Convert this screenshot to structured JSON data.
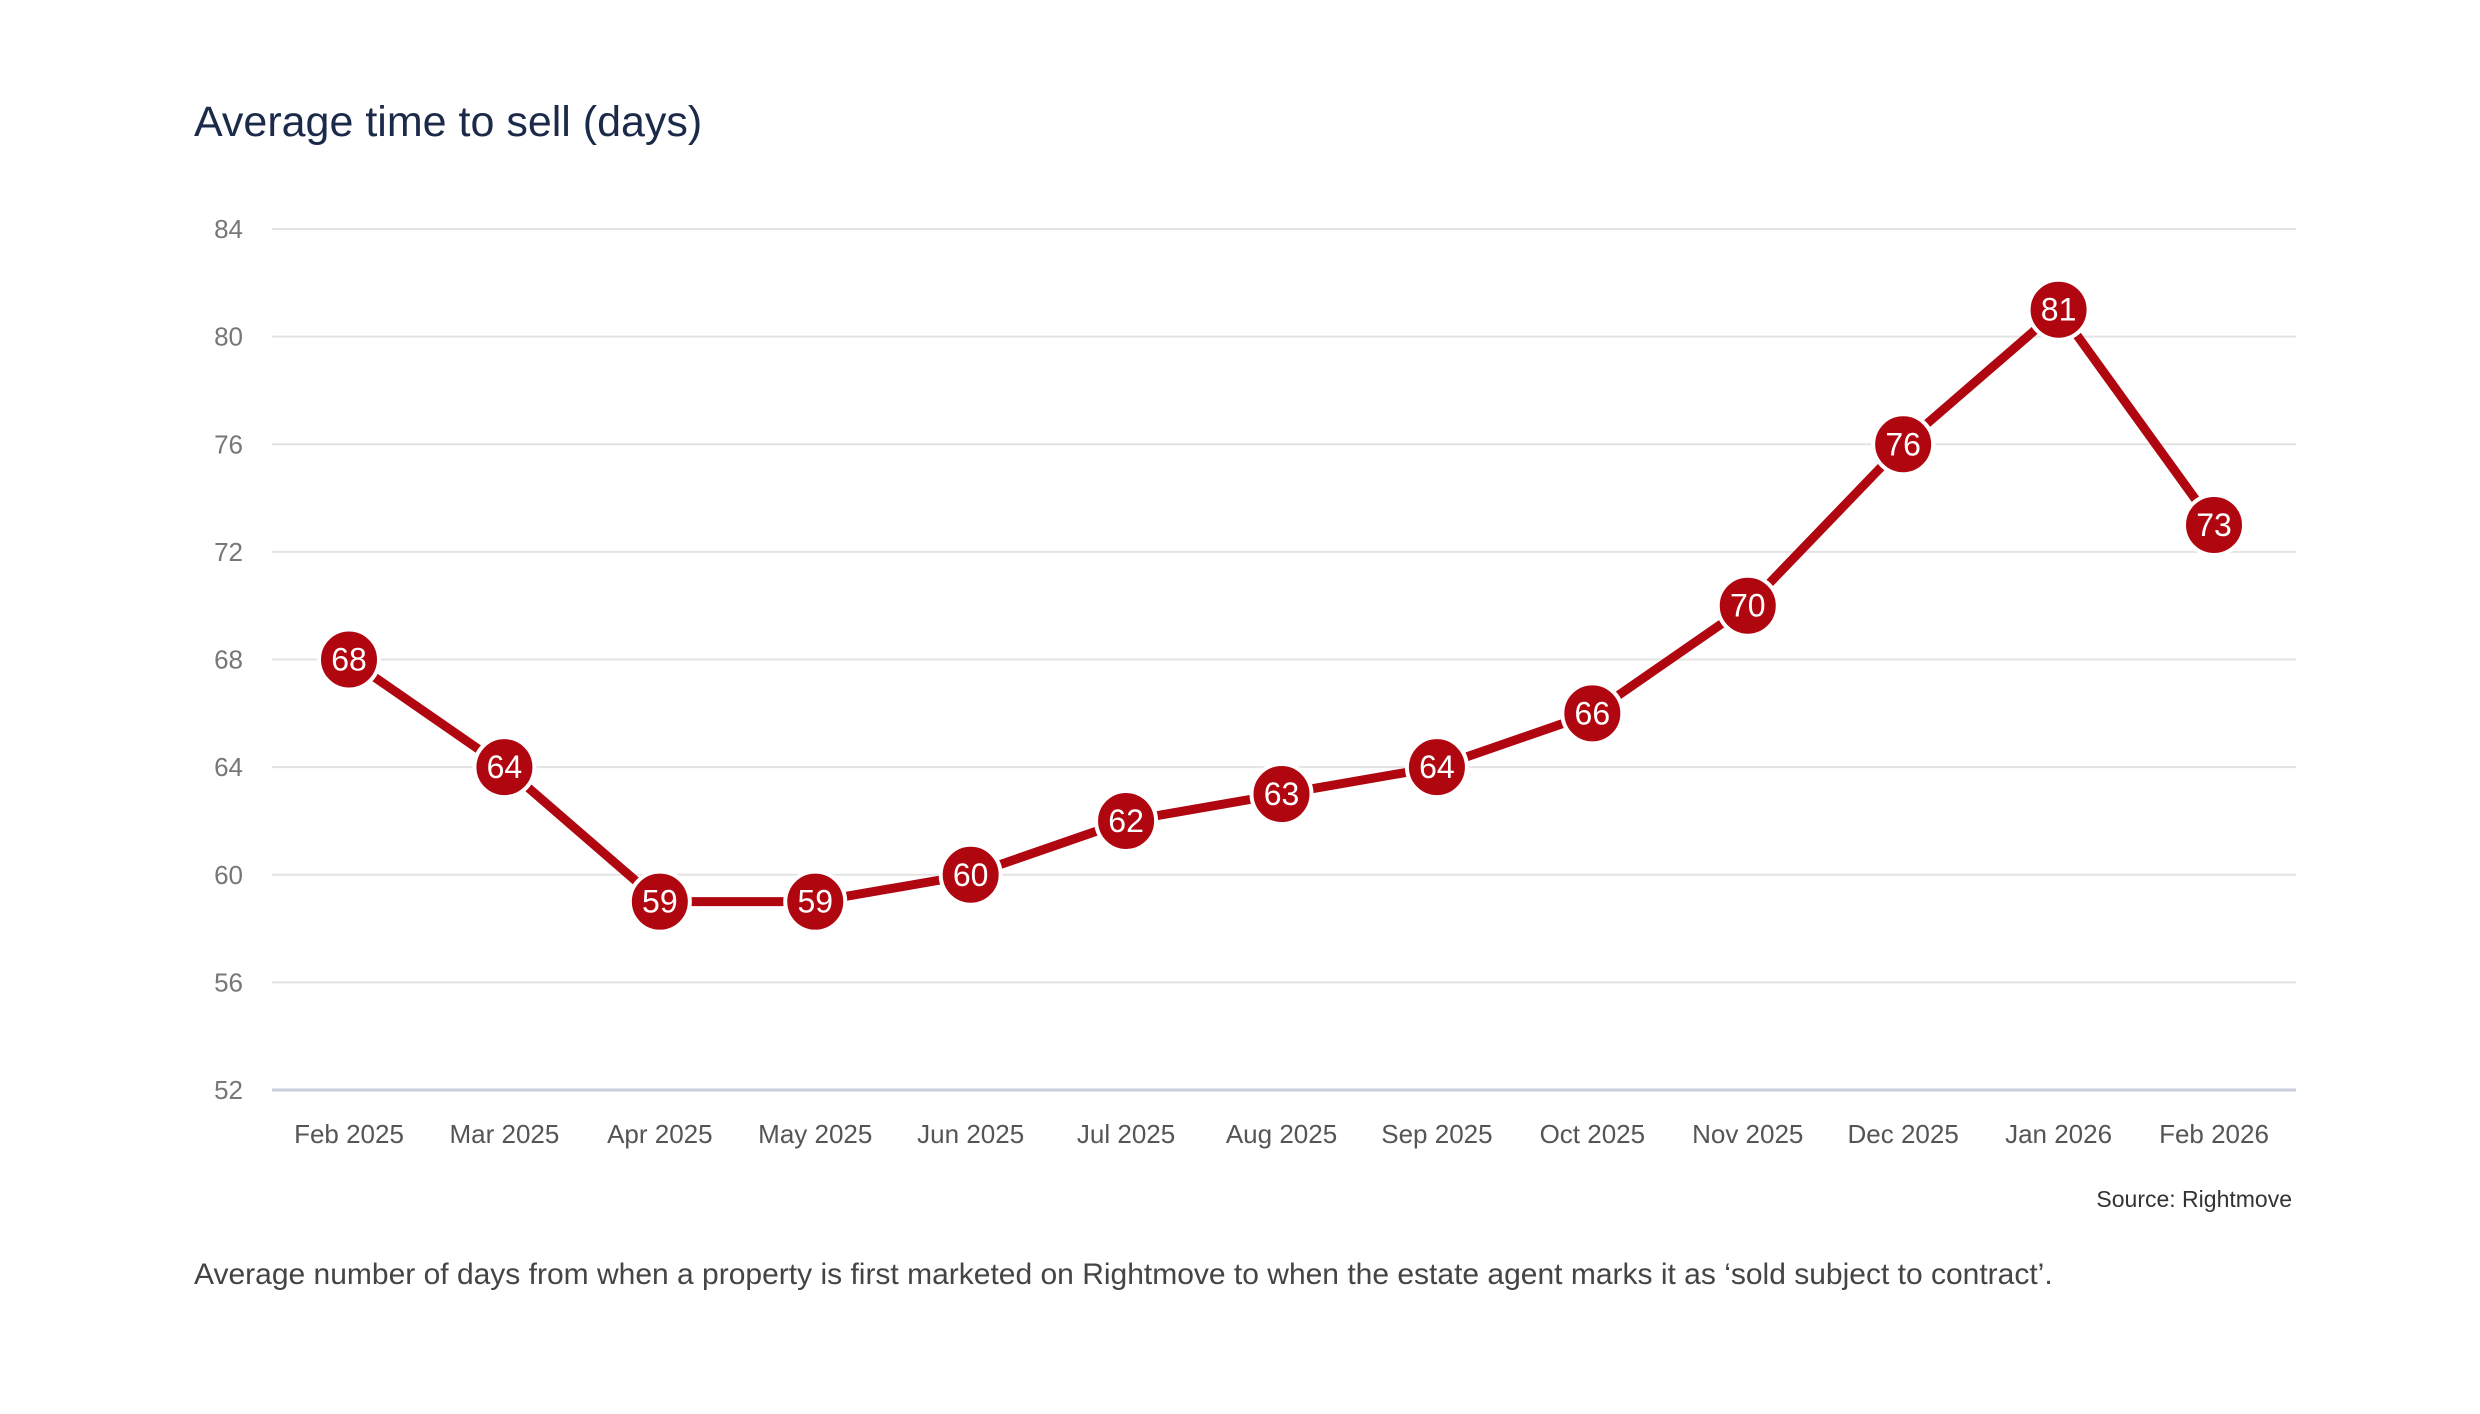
{
  "header": {
    "title": "Average time to sell (days)"
  },
  "footer": {
    "source": "Source: Rightmove",
    "caption": "Average number of days from when a property is first marketed on Rightmove to when the estate agent marks it as ‘sold subject to contract’."
  },
  "colors": {
    "line": "#b00610",
    "grid": "#e3e3e3",
    "axis": "#c9d0dc"
  },
  "chart_data": {
    "type": "line",
    "title": "Average time to sell (days)",
    "xlabel": "",
    "ylabel": "",
    "categories": [
      "Feb 2025",
      "Mar 2025",
      "Apr 2025",
      "May 2025",
      "Jun 2025",
      "Jul 2025",
      "Aug 2025",
      "Sep 2025",
      "Oct 2025",
      "Nov 2025",
      "Dec 2025",
      "Jan 2026",
      "Feb 2026"
    ],
    "series": [
      {
        "name": "Average time to sell (days)",
        "values": [
          68,
          64,
          59,
          59,
          60,
          62,
          63,
          64,
          66,
          70,
          76,
          81,
          73
        ]
      }
    ],
    "ylim": [
      52,
      84
    ],
    "yticks": [
      52,
      56,
      60,
      64,
      68,
      72,
      76,
      80,
      84
    ],
    "grid": true,
    "legend": "none",
    "data_labels": true
  }
}
